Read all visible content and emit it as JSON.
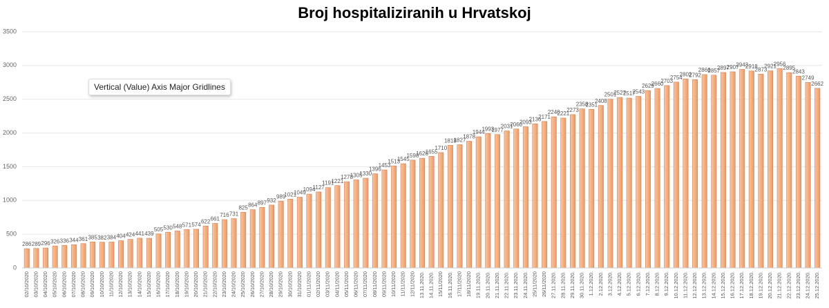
{
  "chart_data": {
    "type": "bar",
    "title": "Broj hospitaliziranih u Hrvatskoj",
    "tooltip": "Vertical (Value) Axis Major Gridlines",
    "categories": [
      "02/10/2020",
      "03/10/2020",
      "04/10/2020",
      "05/10/2020",
      "06/10/2020",
      "07/10/2020",
      "08/10/2020",
      "09/10/2020",
      "10/10/2020",
      "11/10/2020",
      "12/10/2020",
      "13/10/2020",
      "14/10/2020",
      "15/10/2020",
      "16/10/2020",
      "17/10/2020",
      "18/10/2020",
      "19/10/2020",
      "20/10/2020",
      "21/10/2020",
      "22/10/2020",
      "23/10/2020",
      "24/10/2020",
      "25/10/2020",
      "26/10/2020",
      "27/10/2020",
      "28/10/2020",
      "29/10/2020",
      "30/10/2020",
      "31/10/2020",
      "01/11/2020",
      "02/11/2020",
      "03/11/2020",
      "04/11/2020",
      "05/11/2020",
      "06/11/2020",
      "07/11/2020",
      "08/11/2020",
      "09/11/2020",
      "10/11/2020",
      "11/11/2020",
      "12/11/2020",
      "13.11.2020.",
      "14.11.2020.",
      "15/11/2020",
      "16.11.2020.",
      "17/11/2020",
      "18/11/2020",
      "19.11.2020.",
      "20.11.2020.",
      "21.11.2020.",
      "22.11.2020.",
      "23.11.2020.",
      "24.11.2020.",
      "25/11/2020",
      "26/11/2020",
      "27.11.2020.",
      "28.11.2020.",
      "29.11.2020.",
      "30.11.2020.",
      "1.12.2020.",
      "2.12.2020.",
      "3.12.2020.",
      "4.12.2020.",
      "5.12.2020.",
      "6.12.2020.",
      "7.12.2020.",
      "8.12.2020.",
      "9.12.2020.",
      "10.12.2020.",
      "11.12.2020.",
      "12.12.2020.",
      "13.12.2020.",
      "14.12.2020.",
      "15.12.2020.",
      "16.12.2020.",
      "17.12.2020.",
      "18.12.2020.",
      "19.12.2020.",
      "20.12.2020.",
      "21.12.2020.",
      "22.12.2020.",
      "23.12.2020.",
      "24.12.2020.",
      "25.12.2020."
    ],
    "values": [
      286,
      289,
      296,
      326,
      336,
      344,
      361,
      385,
      382,
      384,
      404,
      424,
      441,
      439,
      505,
      530,
      548,
      571,
      574,
      622,
      661,
      716,
      731,
      825,
      864,
      897,
      932,
      989,
      1021,
      1049,
      1094,
      1127,
      1191,
      1221,
      1278,
      1305,
      1330,
      1396,
      1453,
      1513,
      1545,
      1598,
      1626,
      1655,
      1710,
      1818,
      1827,
      1878,
      1944,
      1993,
      1977,
      2031,
      2060,
      2093,
      2136,
      2171,
      2240,
      2221,
      2273,
      2358,
      2351,
      2408,
      2501,
      2527,
      2517,
      2543,
      2629,
      2660,
      2703,
      2754,
      2802,
      2792,
      2866,
      2857,
      2897,
      2907,
      2943,
      2918,
      2873,
      2921,
      2956,
      2895,
      2843,
      2749,
      2662
    ],
    "color": "#f4b183",
    "ylim": [
      0,
      3500
    ],
    "yticks": [
      0,
      500,
      1000,
      1500,
      2000,
      2500,
      3000,
      3500
    ],
    "grid": true
  }
}
